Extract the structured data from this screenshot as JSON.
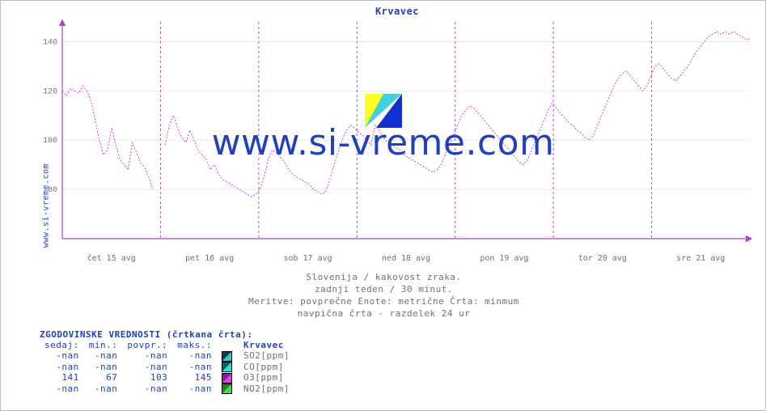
{
  "chart": {
    "title": "Krvavec",
    "ylabel_text": "www.si-vreme.com",
    "watermark_text": "www.si-vreme.com",
    "background_color": "#ffffff",
    "border_color": "#b8b8d0",
    "axis_color": "#b040d0",
    "grid_color": "#e8e8e8",
    "vgrid_color": "#d040d0",
    "line_color": "#d040d0",
    "title_color": "#2040c0",
    "label_color": "#707070",
    "type": "line",
    "ylim": [
      60,
      148
    ],
    "xlim": [
      0,
      7
    ],
    "yticks": [
      80,
      100,
      120,
      140
    ],
    "xticks": [
      {
        "pos": 0.5,
        "label": "čet 15 avg"
      },
      {
        "pos": 1.5,
        "label": "pet 16 avg"
      },
      {
        "pos": 2.5,
        "label": "sob 17 avg"
      },
      {
        "pos": 3.5,
        "label": "ned 18 avg"
      },
      {
        "pos": 4.5,
        "label": "pon 19 avg"
      },
      {
        "pos": 5.5,
        "label": "tor 20 avg"
      },
      {
        "pos": 6.5,
        "label": "sre 21 avg"
      }
    ],
    "series_values": [
      120,
      118,
      121,
      120,
      119,
      122,
      120,
      116,
      108,
      100,
      94,
      96,
      105,
      98,
      92,
      90,
      88,
      99,
      95,
      91,
      89,
      85,
      80,
      null,
      null,
      98,
      106,
      110,
      105,
      101,
      99,
      104,
      100,
      96,
      94,
      92,
      88,
      90,
      86,
      84,
      83,
      82,
      81,
      80,
      79,
      78,
      77,
      78,
      80,
      85,
      92,
      96,
      95,
      93,
      91,
      88,
      86,
      85,
      84,
      83,
      82,
      80,
      79,
      78,
      79,
      84,
      90,
      95,
      100,
      104,
      106,
      105,
      103,
      102,
      100,
      98,
      106,
      104,
      101,
      99,
      98,
      97,
      96,
      94,
      93,
      92,
      91,
      90,
      89,
      88,
      87,
      88,
      90,
      94,
      98,
      102,
      106,
      110,
      112,
      114,
      113,
      111,
      109,
      107,
      105,
      103,
      101,
      99,
      97,
      95,
      93,
      91,
      90,
      92,
      96,
      100,
      104,
      108,
      112,
      115,
      113,
      111,
      109,
      107,
      106,
      104,
      103,
      101,
      100,
      102,
      106,
      110,
      114,
      118,
      122,
      125,
      127,
      128,
      126,
      124,
      122,
      120,
      122,
      126,
      130,
      131,
      129,
      127,
      125,
      124,
      126,
      128,
      130,
      133,
      136,
      138,
      140,
      142,
      143,
      144,
      143,
      144,
      143,
      144,
      143,
      142,
      141,
      141
    ],
    "sub_lines": [
      "Slovenija / kakovost zraka.",
      "zadnji teden / 30 minut.",
      "Meritve: povprečne  Enote: metrične  Črta: minmum",
      "navpična črta - razdelek 24 ur"
    ]
  },
  "logo": {
    "c1": "#ffff20",
    "c2": "#40d0e0",
    "c3": "#1030d0"
  },
  "legend_table": {
    "header": "ZGODOVINSKE VREDNOSTI (črtkana črta):",
    "columns": [
      "sedaj:",
      "min.:",
      "povpr.:",
      "maks.:"
    ],
    "site_label": "Krvavec",
    "rows": [
      {
        "vals": [
          "-nan",
          "-nan",
          "-nan",
          "-nan"
        ],
        "swatch_colors": [
          "#104040",
          "#20d0d0"
        ],
        "label": "SO2[ppm]"
      },
      {
        "vals": [
          "-nan",
          "-nan",
          "-nan",
          "-nan"
        ],
        "swatch_colors": [
          "#106060",
          "#20e0e0"
        ],
        "label": "CO[ppm]"
      },
      {
        "vals": [
          "141",
          "67",
          "103",
          "145"
        ],
        "swatch_colors": [
          "#8020a0",
          "#e040e0"
        ],
        "label": "O3[ppm]"
      },
      {
        "vals": [
          "-nan",
          "-nan",
          "-nan",
          "-nan"
        ],
        "swatch_colors": [
          "#208020",
          "#40e040"
        ],
        "label": "NO2[ppm]"
      }
    ]
  }
}
